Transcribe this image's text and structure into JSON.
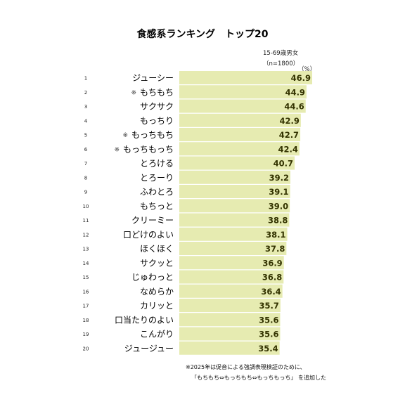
{
  "chart_data": {
    "type": "bar",
    "orientation": "horizontal",
    "title": "食感系ランキング　トップ20",
    "subtitle_lines": [
      "15-69歳男女",
      "（n=1800）"
    ],
    "unit": "（%）",
    "bar_color": "#e6ebb1",
    "value_color": "#333300",
    "xlim": [
      0,
      46.9
    ],
    "grid": false,
    "marker": "※",
    "items": [
      {
        "rank": "1",
        "label": "ジューシー",
        "value": 46.9,
        "marked": false
      },
      {
        "rank": "2",
        "label": "もちもち",
        "value": 44.9,
        "marked": true
      },
      {
        "rank": "3",
        "label": "サクサク",
        "value": 44.6,
        "marked": false
      },
      {
        "rank": "4",
        "label": "もっちり",
        "value": 42.9,
        "marked": false
      },
      {
        "rank": "5",
        "label": "もっちもち",
        "value": 42.7,
        "marked": true
      },
      {
        "rank": "6",
        "label": "もっちもっち",
        "value": 42.4,
        "marked": true
      },
      {
        "rank": "7",
        "label": "とろける",
        "value": 40.7,
        "marked": false
      },
      {
        "rank": "8",
        "label": "とろーり",
        "value": 39.2,
        "marked": false
      },
      {
        "rank": "9",
        "label": "ふわとろ",
        "value": 39.1,
        "marked": false
      },
      {
        "rank": "10",
        "label": "もちっと",
        "value": 39.0,
        "marked": false
      },
      {
        "rank": "11",
        "label": "クリーミー",
        "value": 38.8,
        "marked": false
      },
      {
        "rank": "12",
        "label": "口どけのよい",
        "value": 38.1,
        "marked": false
      },
      {
        "rank": "13",
        "label": "ほくほく",
        "value": 37.8,
        "marked": false
      },
      {
        "rank": "14",
        "label": "サクッと",
        "value": 36.9,
        "marked": false
      },
      {
        "rank": "15",
        "label": "じゅわっと",
        "value": 36.8,
        "marked": false
      },
      {
        "rank": "16",
        "label": "なめらか",
        "value": 36.4,
        "marked": false
      },
      {
        "rank": "17",
        "label": "カリッと",
        "value": 35.7,
        "marked": false
      },
      {
        "rank": "18",
        "label": "口当たりのよい",
        "value": 35.6,
        "marked": false
      },
      {
        "rank": "19",
        "label": "こんがり",
        "value": 35.6,
        "marked": false
      },
      {
        "rank": "20",
        "label": "ジュージュー",
        "value": 35.4,
        "marked": false
      }
    ],
    "footnote_lines": [
      "※2025年は促音による強調表現検証のために、",
      "「もちもち⇔もっちもち⇔もっちもっち」 を追加した"
    ]
  }
}
